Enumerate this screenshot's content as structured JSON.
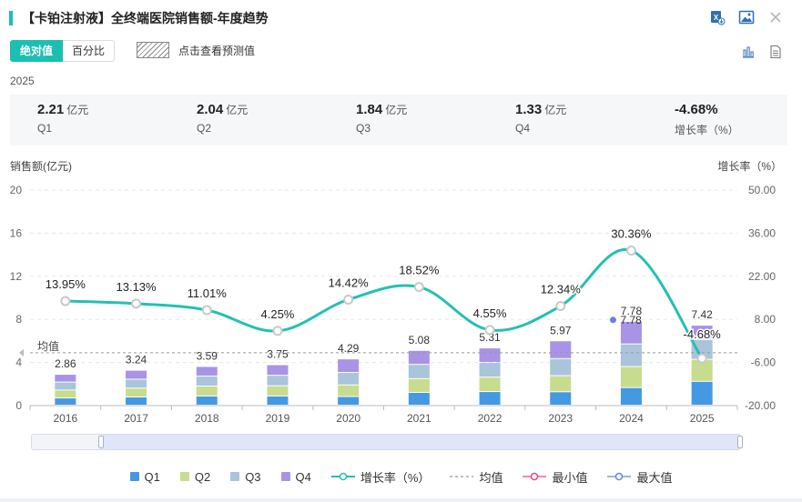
{
  "header": {
    "title": "【卡铂注射液】全终端医院销售额-年度趋势"
  },
  "icons": {
    "excel": "excel-export-icon",
    "image": "image-export-icon",
    "close": "close-icon",
    "bar_chart": "bar-chart-icon",
    "table": "table-view-icon"
  },
  "toggle": {
    "absolute": "绝对值",
    "percent": "百分比"
  },
  "forecast": {
    "label": "点击查看预测值"
  },
  "year": "2025",
  "stats": [
    {
      "value": "2.21",
      "unit": "亿元",
      "label": "Q1"
    },
    {
      "value": "2.04",
      "unit": "亿元",
      "label": "Q2"
    },
    {
      "value": "1.84",
      "unit": "亿元",
      "label": "Q3"
    },
    {
      "value": "1.33",
      "unit": "亿元",
      "label": "Q4"
    },
    {
      "value": "-4.68%",
      "unit": "",
      "label": "增长率（%）"
    }
  ],
  "colors": {
    "accent": "#1bbfb2",
    "q1": "#4599e2",
    "q2": "#c8dc8e",
    "q3": "#a9c4db",
    "q4": "#a993e6",
    "growth": "#24c0b4",
    "avg": "#999999",
    "min": "#f0457c",
    "max": "#6c7fe0"
  },
  "legend": {
    "q1": "Q1",
    "q2": "Q2",
    "q3": "Q3",
    "q4": "Q4",
    "growth": "增长率（%）",
    "avg": "均值",
    "min": "最小值",
    "max": "最大值"
  },
  "chart_data": {
    "type": "bar",
    "stacked": true,
    "categories": [
      "2016",
      "2017",
      "2018",
      "2019",
      "2020",
      "2021",
      "2022",
      "2023",
      "2024",
      "2025"
    ],
    "series": [
      {
        "name": "Q1",
        "values": [
          0.67,
          0.76,
          0.85,
          0.85,
          0.8,
          1.18,
          1.26,
          1.24,
          1.63,
          2.21
        ]
      },
      {
        "name": "Q2",
        "values": [
          0.73,
          0.82,
          0.92,
          0.95,
          1.08,
          1.28,
          1.34,
          1.5,
          1.95,
          2.04
        ]
      },
      {
        "name": "Q3",
        "values": [
          0.74,
          0.83,
          0.92,
          0.97,
          1.15,
          1.32,
          1.36,
          1.58,
          2.1,
          1.84
        ]
      },
      {
        "name": "Q4",
        "values": [
          0.72,
          0.83,
          0.9,
          0.98,
          1.26,
          1.3,
          1.35,
          1.65,
          2.1,
          1.33
        ]
      }
    ],
    "totals": [
      2.86,
      3.24,
      3.59,
      3.75,
      4.29,
      5.08,
      5.31,
      5.97,
      7.78,
      7.42
    ],
    "growth_series": {
      "name": "增长率（%）",
      "values": [
        13.95,
        13.13,
        11.01,
        4.25,
        14.42,
        18.52,
        4.55,
        12.34,
        30.36,
        -4.68
      ],
      "labels": [
        "13.95%",
        "13.13%",
        "11.01%",
        "4.25%",
        "14.42%",
        "18.52%",
        "4.55%",
        "12.34%",
        "30.36%",
        "-4.68%"
      ]
    },
    "average": {
      "label": "均值",
      "value": 4.9
    },
    "max_marker": {
      "category": "2024",
      "value": 7.78
    },
    "ylabel": "销售额(亿元)",
    "y2label": "增长率（%）",
    "ylim": [
      0,
      20
    ],
    "y2lim": [
      -20,
      50
    ],
    "yticks": [
      0,
      4,
      8,
      12,
      16,
      20
    ],
    "y2ticks": [
      "-20.00",
      "-6.00",
      "8.00",
      "22.00",
      "36.00",
      "50.00"
    ],
    "grid": true,
    "legend_position": "bottom"
  }
}
